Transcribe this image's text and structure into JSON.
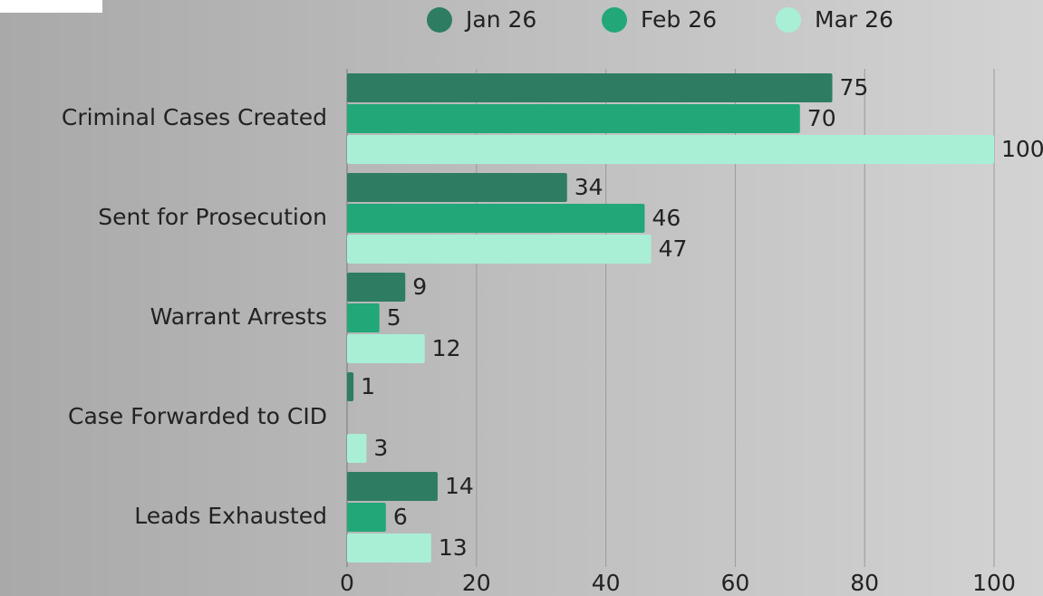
{
  "chart_data": {
    "type": "hbar",
    "categories": [
      "Criminal Cases Created",
      "Sent for Prosecution",
      "Warrant Arrests",
      "Case Forwarded to CID",
      "Leads Exhausted"
    ],
    "series": [
      {
        "name": "Jan 26",
        "color": "#2e7d62",
        "values": [
          75,
          34,
          9,
          1,
          14
        ]
      },
      {
        "name": "Feb 26",
        "color": "#22a878",
        "values": [
          70,
          46,
          5,
          null,
          6
        ]
      },
      {
        "name": "Mar 26",
        "color": "#a8efd6",
        "values": [
          100,
          47,
          12,
          3,
          13
        ]
      }
    ],
    "xlim": [
      0,
      100
    ],
    "xticks": [
      0,
      20,
      40,
      60,
      80,
      100
    ],
    "grid": true,
    "legend": "top"
  }
}
